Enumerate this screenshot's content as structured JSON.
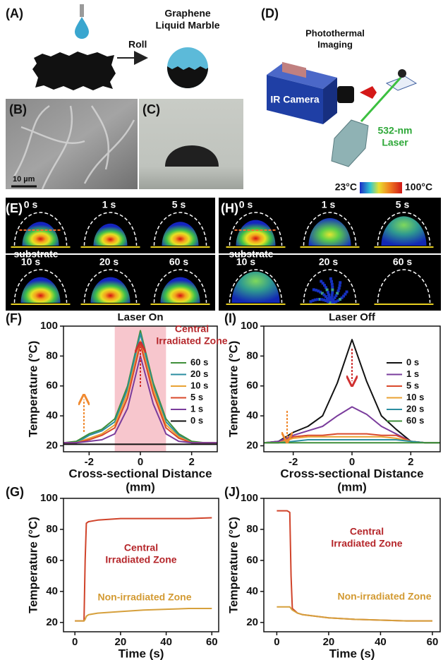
{
  "figure": {
    "panel_labels": [
      "(A)",
      "(B)",
      "(C)",
      "(D)",
      "(E)",
      "(H)"
    ],
    "roll_label": "Roll",
    "marble_label": [
      "Graphene",
      "Liquid Marble"
    ],
    "scale_bar": "10 µm",
    "imaging_label": [
      "Photothermal",
      "Imaging"
    ],
    "camera_label": "IR Camera",
    "laser_label": [
      "532-nm",
      "Laser"
    ],
    "colorbar": {
      "min_label": "23°C",
      "max_label": "100°C"
    },
    "thermal_on": {
      "times": [
        "0 s",
        "1 s",
        "5 s",
        "10 s",
        "20 s",
        "60 s"
      ],
      "substrate": "substrate"
    },
    "thermal_off": {
      "times": [
        "0 s",
        "1 s",
        "5 s",
        "10 s",
        "20 s",
        "60 s"
      ],
      "substrate": "substrate"
    }
  },
  "chart_data": [
    {
      "type": "line",
      "panel": "(F)",
      "title": "Laser On",
      "xlabel": [
        "Cross-sectional Distance",
        "(mm)"
      ],
      "ylabel": "Temperature (°C)",
      "xlim": [
        -3,
        3
      ],
      "ylim": [
        16,
        100
      ],
      "xticks": [
        -2,
        0,
        2
      ],
      "yticks": [
        20,
        40,
        60,
        80,
        100
      ],
      "shaded_x": [
        -1,
        1
      ],
      "shade_color": "#f6bcc4",
      "legend": true,
      "annotations": [
        {
          "lines": [
            "Central",
            "Irradiated Zone"
          ],
          "color": "#b5262a"
        }
      ],
      "x": [
        -3,
        -2.5,
        -2,
        -1.5,
        -1,
        -0.5,
        0,
        0.5,
        1,
        1.5,
        2,
        2.5,
        3
      ],
      "series": [
        {
          "name": "60 s",
          "color": "#3f8f3a",
          "values": [
            22,
            23,
            28,
            31,
            38,
            60,
            97,
            62,
            38,
            28,
            23,
            22,
            22
          ]
        },
        {
          "name": "20 s",
          "color": "#2b8ea0",
          "values": [
            22,
            22,
            27,
            30,
            36,
            58,
            95,
            60,
            36,
            27,
            22,
            22,
            22
          ]
        },
        {
          "name": "10 s",
          "color": "#e9a233",
          "values": [
            22,
            22,
            25,
            28,
            34,
            55,
            90,
            58,
            34,
            26,
            22,
            22,
            22
          ]
        },
        {
          "name": "5 s",
          "color": "#d9492b",
          "values": [
            22,
            22,
            24,
            27,
            32,
            52,
            88,
            55,
            32,
            25,
            22,
            22,
            22
          ]
        },
        {
          "name": "1 s",
          "color": "#7a3c9c",
          "values": [
            22,
            22,
            23,
            24,
            28,
            45,
            80,
            48,
            28,
            23,
            22,
            22,
            22
          ]
        },
        {
          "name": "0 s",
          "color": "#111111",
          "values": [
            21,
            21,
            21,
            21,
            21,
            21,
            21,
            21,
            21,
            21,
            21,
            21,
            21
          ]
        }
      ]
    },
    {
      "type": "line",
      "panel": "(I)",
      "title": "Laser Off",
      "xlabel": [
        "Cross-sectional Distance",
        "(mm)"
      ],
      "ylabel": "Temperature (°C)",
      "xlim": [
        -3,
        3
      ],
      "ylim": [
        16,
        100
      ],
      "xticks": [
        -2,
        0,
        2
      ],
      "yticks": [
        20,
        40,
        60,
        80,
        100
      ],
      "legend": true,
      "x": [
        -3,
        -2.5,
        -2,
        -1.5,
        -1,
        -0.5,
        0,
        0.5,
        1,
        1.5,
        2,
        2.5,
        3
      ],
      "series": [
        {
          "name": "0 s",
          "color": "#111111",
          "values": [
            22,
            23,
            29,
            33,
            40,
            62,
            91,
            63,
            40,
            31,
            23,
            22,
            22
          ]
        },
        {
          "name": "1 s",
          "color": "#7a3c9c",
          "values": [
            22,
            23,
            27,
            30,
            33,
            40,
            46,
            41,
            33,
            28,
            23,
            22,
            22
          ]
        },
        {
          "name": "5 s",
          "color": "#d9492b",
          "values": [
            22,
            22,
            26,
            27,
            27,
            28,
            28,
            28,
            27,
            27,
            23,
            22,
            22
          ]
        },
        {
          "name": "10 s",
          "color": "#e9a233",
          "values": [
            22,
            22,
            25,
            26,
            26,
            26,
            26,
            26,
            26,
            25,
            23,
            22,
            22
          ]
        },
        {
          "name": "20 s",
          "color": "#2b8ea0",
          "values": [
            22,
            22,
            23,
            24,
            24,
            24,
            24,
            24,
            24,
            24,
            23,
            22,
            22
          ]
        },
        {
          "name": "60 s",
          "color": "#3f8f3a",
          "values": [
            22,
            22,
            22,
            22,
            22,
            22,
            22,
            22,
            22,
            22,
            22,
            22,
            22
          ]
        }
      ]
    },
    {
      "type": "line",
      "panel": "(G)",
      "xlabel": [
        "Time (s)"
      ],
      "ylabel": "Temperature (°C)",
      "xlim": [
        -5,
        63
      ],
      "ylim": [
        14,
        100
      ],
      "xticks": [
        0,
        20,
        40,
        60
      ],
      "yticks": [
        20,
        40,
        60,
        80,
        100
      ],
      "annotations": [
        {
          "lines": [
            "Central",
            "Irradiated Zone"
          ],
          "color": "#b5262a"
        },
        {
          "lines": [
            "Non-irradiated Zone"
          ],
          "color": "#d39a32"
        }
      ],
      "x": [
        0,
        4,
        4.5,
        5,
        6,
        10,
        20,
        30,
        40,
        50,
        60
      ],
      "series": [
        {
          "color": "#d0432a",
          "values": [
            21,
            21,
            60,
            84,
            85,
            86,
            87,
            87,
            87,
            87,
            87.5
          ]
        },
        {
          "color": "#d6a03c",
          "values": [
            21,
            21,
            22,
            24,
            25,
            26,
            27,
            28,
            28.5,
            29,
            29
          ]
        }
      ]
    },
    {
      "type": "line",
      "panel": "(J)",
      "xlabel": [
        "Time (s)"
      ],
      "ylabel": "Temperature (°C)",
      "xlim": [
        -5,
        63
      ],
      "ylim": [
        14,
        100
      ],
      "xticks": [
        0,
        20,
        40,
        60
      ],
      "yticks": [
        20,
        40,
        60,
        80,
        100
      ],
      "annotations": [
        {
          "lines": [
            "Central",
            "Irradiated Zone"
          ],
          "color": "#b5262a"
        },
        {
          "lines": [
            "Non-irradiated Zone"
          ],
          "color": "#d39a32"
        }
      ],
      "x": [
        0,
        4,
        5,
        5.5,
        6,
        8,
        10,
        20,
        30,
        40,
        50,
        60
      ],
      "series": [
        {
          "color": "#d0432a",
          "values": [
            92,
            92,
            91,
            50,
            29,
            26,
            25,
            23,
            22,
            21.5,
            21,
            21
          ]
        },
        {
          "color": "#d6a03c",
          "values": [
            30,
            30,
            30,
            29,
            28,
            26,
            25,
            23,
            22,
            21.5,
            21,
            21
          ]
        }
      ]
    }
  ]
}
